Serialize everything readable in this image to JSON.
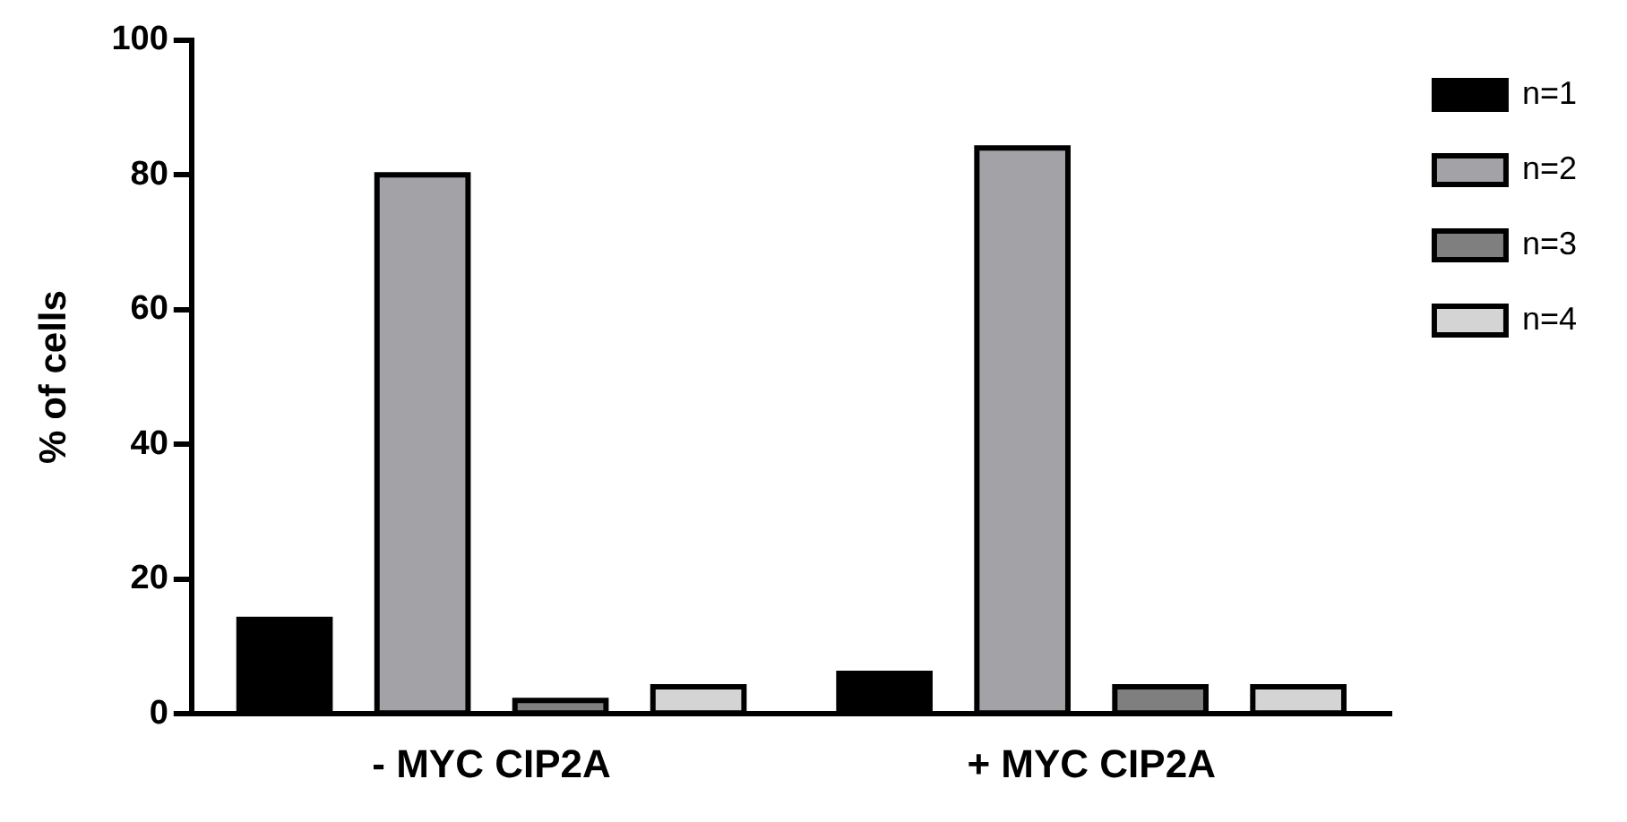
{
  "chart_data": {
    "type": "bar",
    "ylabel": "% of cells",
    "categories": [
      "- MYC CIP2A",
      "+ MYC CIP2A"
    ],
    "series": [
      {
        "name": "n=1",
        "color": "#000000",
        "values": [
          14,
          6
        ]
      },
      {
        "name": "n=2",
        "color": "#a3a2a7",
        "values": [
          80,
          84
        ]
      },
      {
        "name": "n=3",
        "color": "#7f7f7f",
        "values": [
          2,
          4
        ]
      },
      {
        "name": "n=4",
        "color": "#d4d4d4",
        "values": [
          4,
          4
        ]
      }
    ],
    "ylim": [
      0,
      100
    ],
    "yticks": [
      0,
      20,
      40,
      60,
      80,
      100
    ],
    "grid": false,
    "legend": "right"
  }
}
